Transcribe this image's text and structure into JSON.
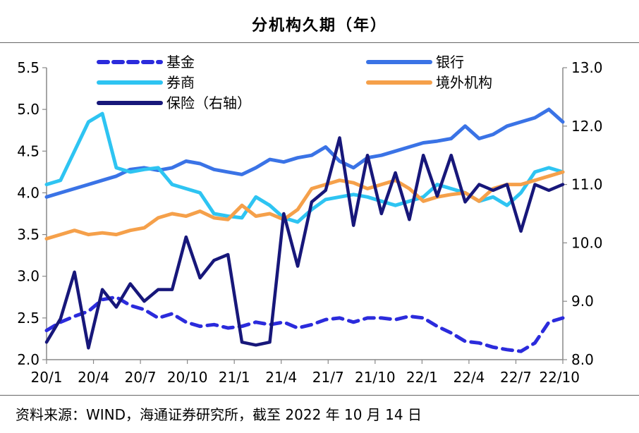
{
  "title": "分机构久期（年）",
  "source": "资料来源：WIND，海通证券研究所，截至 2022 年 10 月 14 日",
  "chart_data": {
    "type": "line",
    "x_ticks": [
      "20/1",
      "20/4",
      "20/7",
      "20/10",
      "21/1",
      "21/4",
      "21/7",
      "21/10",
      "22/1",
      "22/4",
      "22/7",
      "22/10"
    ],
    "y_left": {
      "lim": [
        2.0,
        5.5
      ],
      "ticks": [
        "2.0",
        "2.5",
        "3.0",
        "3.5",
        "4.0",
        "4.5",
        "5.0",
        "5.5"
      ]
    },
    "y_right": {
      "lim": [
        8.0,
        13.0
      ],
      "ticks": [
        "8.0",
        "9.0",
        "10.0",
        "11.0",
        "12.0",
        "13.0"
      ]
    },
    "series": [
      {
        "name": "基金",
        "axis": "left",
        "color": "#2b2bdc",
        "dash": true,
        "values": [
          2.35,
          2.45,
          2.52,
          2.58,
          2.72,
          2.75,
          2.65,
          2.6,
          2.5,
          2.55,
          2.45,
          2.4,
          2.42,
          2.38,
          2.4,
          2.45,
          2.42,
          2.45,
          2.38,
          2.42,
          2.48,
          2.5,
          2.45,
          2.5,
          2.5,
          2.48,
          2.52,
          2.5,
          2.4,
          2.32,
          2.22,
          2.2,
          2.15,
          2.12,
          2.1,
          2.2,
          2.45,
          2.5
        ]
      },
      {
        "name": "银行",
        "axis": "left",
        "color": "#3a73e6",
        "dash": false,
        "values": [
          3.95,
          4.0,
          4.05,
          4.1,
          4.15,
          4.2,
          4.28,
          4.3,
          4.27,
          4.3,
          4.38,
          4.35,
          4.28,
          4.25,
          4.22,
          4.3,
          4.4,
          4.37,
          4.42,
          4.45,
          4.55,
          4.38,
          4.3,
          4.42,
          4.45,
          4.5,
          4.55,
          4.6,
          4.62,
          4.65,
          4.8,
          4.65,
          4.7,
          4.8,
          4.85,
          4.9,
          5.0,
          4.85
        ]
      },
      {
        "name": "券商",
        "axis": "left",
        "color": "#2ec4f2",
        "dash": false,
        "values": [
          4.1,
          4.15,
          4.5,
          4.85,
          4.95,
          4.3,
          4.25,
          4.28,
          4.3,
          4.1,
          4.05,
          4.0,
          3.75,
          3.72,
          3.7,
          3.95,
          3.85,
          3.7,
          3.65,
          3.8,
          3.92,
          3.95,
          3.98,
          3.95,
          3.9,
          3.85,
          3.9,
          3.95,
          4.1,
          4.05,
          4.0,
          3.9,
          3.95,
          3.85,
          4.0,
          4.25,
          4.3,
          4.25
        ]
      },
      {
        "name": "境外机构",
        "axis": "left",
        "color": "#f5a04a",
        "dash": false,
        "values": [
          3.45,
          3.5,
          3.55,
          3.5,
          3.52,
          3.5,
          3.55,
          3.58,
          3.7,
          3.75,
          3.72,
          3.78,
          3.7,
          3.68,
          3.85,
          3.72,
          3.75,
          3.68,
          3.8,
          4.05,
          4.1,
          4.15,
          4.12,
          4.05,
          4.1,
          4.15,
          4.05,
          3.9,
          3.95,
          3.98,
          4.0,
          3.9,
          4.05,
          4.1,
          4.1,
          4.15,
          4.2,
          4.25
        ]
      },
      {
        "name": "保险（右轴）",
        "axis": "right",
        "color": "#17177a",
        "dash": false,
        "values": [
          8.3,
          8.7,
          9.5,
          8.2,
          9.2,
          8.9,
          9.3,
          9.0,
          9.2,
          9.2,
          10.1,
          9.4,
          9.7,
          9.8,
          8.3,
          8.25,
          8.3,
          10.5,
          9.6,
          10.7,
          10.9,
          11.8,
          10.3,
          11.5,
          10.5,
          11.2,
          10.4,
          11.5,
          10.8,
          11.5,
          10.7,
          11.0,
          10.9,
          11.0,
          10.2,
          11.0,
          10.9,
          11.0
        ]
      }
    ],
    "legend": "top, two columns",
    "grid": false
  }
}
